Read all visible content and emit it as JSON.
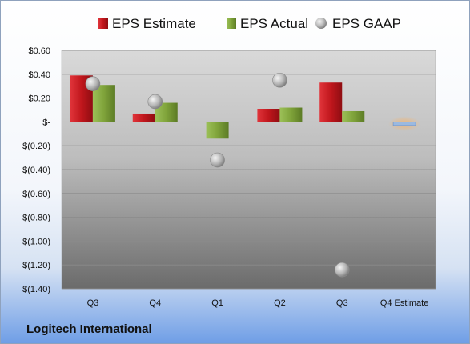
{
  "company": "Logitech International",
  "colors": {
    "estimate": "#c0161c",
    "actual": "#7fa33a",
    "gaap": "#a8a8a8",
    "future_estimate_bar": "#9bb9e0",
    "future_estimate_glow": "#f5b36b"
  },
  "chart_data": {
    "type": "bar",
    "categories": [
      "Q3",
      "Q4",
      "Q1",
      "Q2",
      "Q3",
      "Q4 Estimate"
    ],
    "series": [
      {
        "name": "EPS Estimate",
        "type": "bar",
        "values": [
          0.39,
          0.07,
          null,
          0.11,
          0.33,
          -0.03
        ]
      },
      {
        "name": "EPS Actual",
        "type": "bar",
        "values": [
          0.31,
          0.16,
          -0.14,
          0.12,
          0.09,
          null
        ]
      },
      {
        "name": "EPS GAAP",
        "type": "scatter",
        "values": [
          0.32,
          0.17,
          -0.32,
          0.35,
          -1.24,
          null
        ]
      }
    ],
    "y_ticks": [
      "$0.60",
      "$0.40",
      "$0.20",
      "$-",
      "$(0.20)",
      "$(0.40)",
      "$(0.60)",
      "$(0.80)",
      "$(1.00)",
      "$(1.20)",
      "$(1.40)"
    ],
    "ylim": [
      -1.4,
      0.6
    ],
    "grid": true,
    "legend_position": "top"
  }
}
